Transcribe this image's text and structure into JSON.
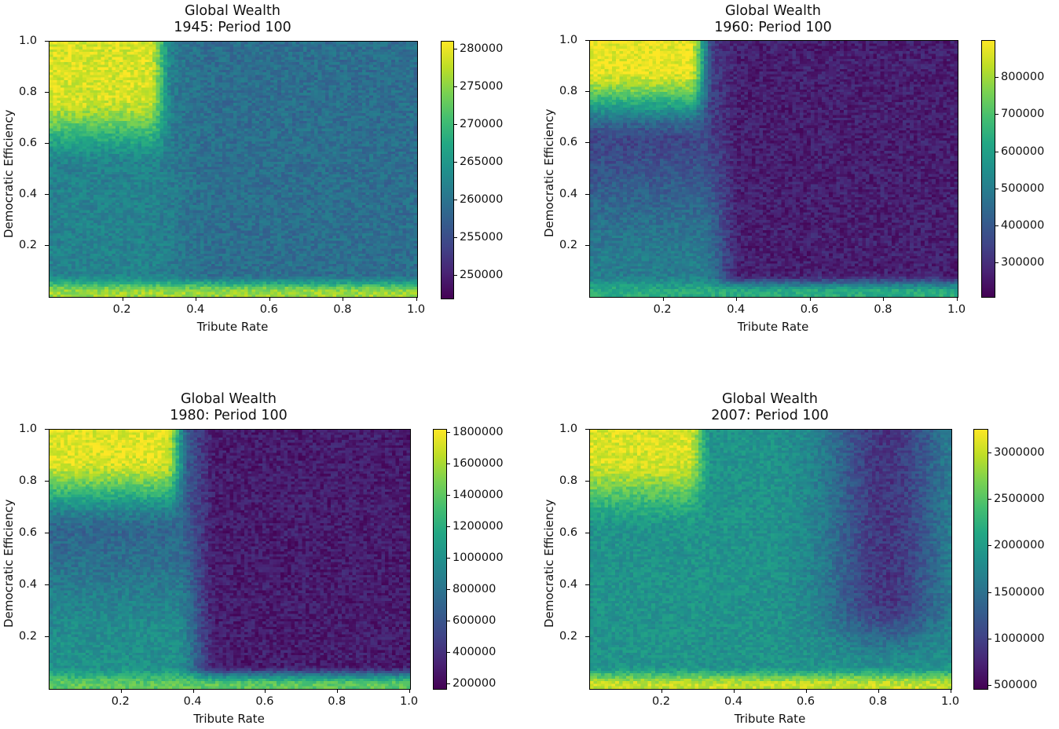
{
  "chart_data": [
    {
      "type": "heatmap",
      "title": "Global Wealth",
      "subtitle": "1945: Period 100",
      "xlabel": "Tribute Rate",
      "ylabel": "Democratic Efficiency",
      "xlim": [
        0.0,
        1.0
      ],
      "ylim": [
        0.0,
        1.0
      ],
      "x_ticks": [
        "0.2",
        "0.4",
        "0.6",
        "0.8",
        "1.0"
      ],
      "y_ticks": [
        "0.2",
        "0.4",
        "0.6",
        "0.8",
        "1.0"
      ],
      "colormap": "viridis",
      "colorbar": {
        "min": 247000,
        "max": 281000,
        "ticks": [
          250000,
          255000,
          260000,
          265000,
          270000,
          275000,
          280000
        ]
      },
      "pattern": {
        "hi_region_x": 0.3,
        "hi_region_y": 0.75,
        "hi_value": 279000,
        "mid_value": 262000,
        "low_value": 257500,
        "bottom_band": 276000
      }
    },
    {
      "type": "heatmap",
      "title": "Global Wealth",
      "subtitle": "1960: Period 100",
      "xlabel": "Tribute Rate",
      "ylabel": "Democratic Efficiency",
      "xlim": [
        0.0,
        1.0
      ],
      "ylim": [
        0.0,
        1.0
      ],
      "x_ticks": [
        "0.2",
        "0.4",
        "0.6",
        "0.8",
        "1.0"
      ],
      "y_ticks": [
        "0.2",
        "0.4",
        "0.6",
        "0.8",
        "1.0"
      ],
      "colormap": "viridis",
      "colorbar": {
        "min": 210000,
        "max": 900000,
        "ticks": [
          300000,
          400000,
          500000,
          600000,
          700000,
          800000
        ]
      },
      "pattern": {
        "hi_region_x": 0.3,
        "hi_region_y": 0.85,
        "hi_value": 880000,
        "mid_value": 500000,
        "low_value": 270000,
        "bottom_band": 640000
      }
    },
    {
      "type": "heatmap",
      "title": "Global Wealth",
      "subtitle": "1980: Period 100",
      "xlabel": "Tribute Rate",
      "ylabel": "Democratic Efficiency",
      "xlim": [
        0.0,
        1.0
      ],
      "ylim": [
        0.0,
        1.0
      ],
      "x_ticks": [
        "0.2",
        "0.4",
        "0.6",
        "0.8",
        "1.0"
      ],
      "y_ticks": [
        "0.2",
        "0.4",
        "0.6",
        "0.8",
        "1.0"
      ],
      "colormap": "viridis",
      "colorbar": {
        "min": 170000,
        "max": 1820000,
        "ticks": [
          200000,
          400000,
          600000,
          800000,
          1000000,
          1200000,
          1400000,
          1600000,
          1800000
        ]
      },
      "pattern": {
        "hi_region_x": 0.35,
        "hi_region_y": 0.85,
        "hi_value": 1750000,
        "mid_value": 1000000,
        "low_value": 300000,
        "bottom_band": 1400000
      }
    },
    {
      "type": "heatmap",
      "title": "Global Wealth",
      "subtitle": "2007: Period 100",
      "xlabel": "Tribute Rate",
      "ylabel": "Democratic Efficiency",
      "xlim": [
        0.0,
        1.0
      ],
      "ylim": [
        0.0,
        1.0
      ],
      "x_ticks": [
        "0.2",
        "0.4",
        "0.6",
        "0.8",
        "1.0"
      ],
      "y_ticks": [
        "0.2",
        "0.4",
        "0.6",
        "0.8",
        "1.0"
      ],
      "colormap": "viridis",
      "colorbar": {
        "min": 470000,
        "max": 3250000,
        "ticks": [
          500000,
          1000000,
          1500000,
          2000000,
          2500000,
          3000000
        ]
      },
      "pattern": {
        "hi_region_x": 0.3,
        "hi_region_y": 0.85,
        "hi_value": 3100000,
        "mid_value": 1900000,
        "low_value": 900000,
        "bottom_band": 3000000
      }
    }
  ]
}
